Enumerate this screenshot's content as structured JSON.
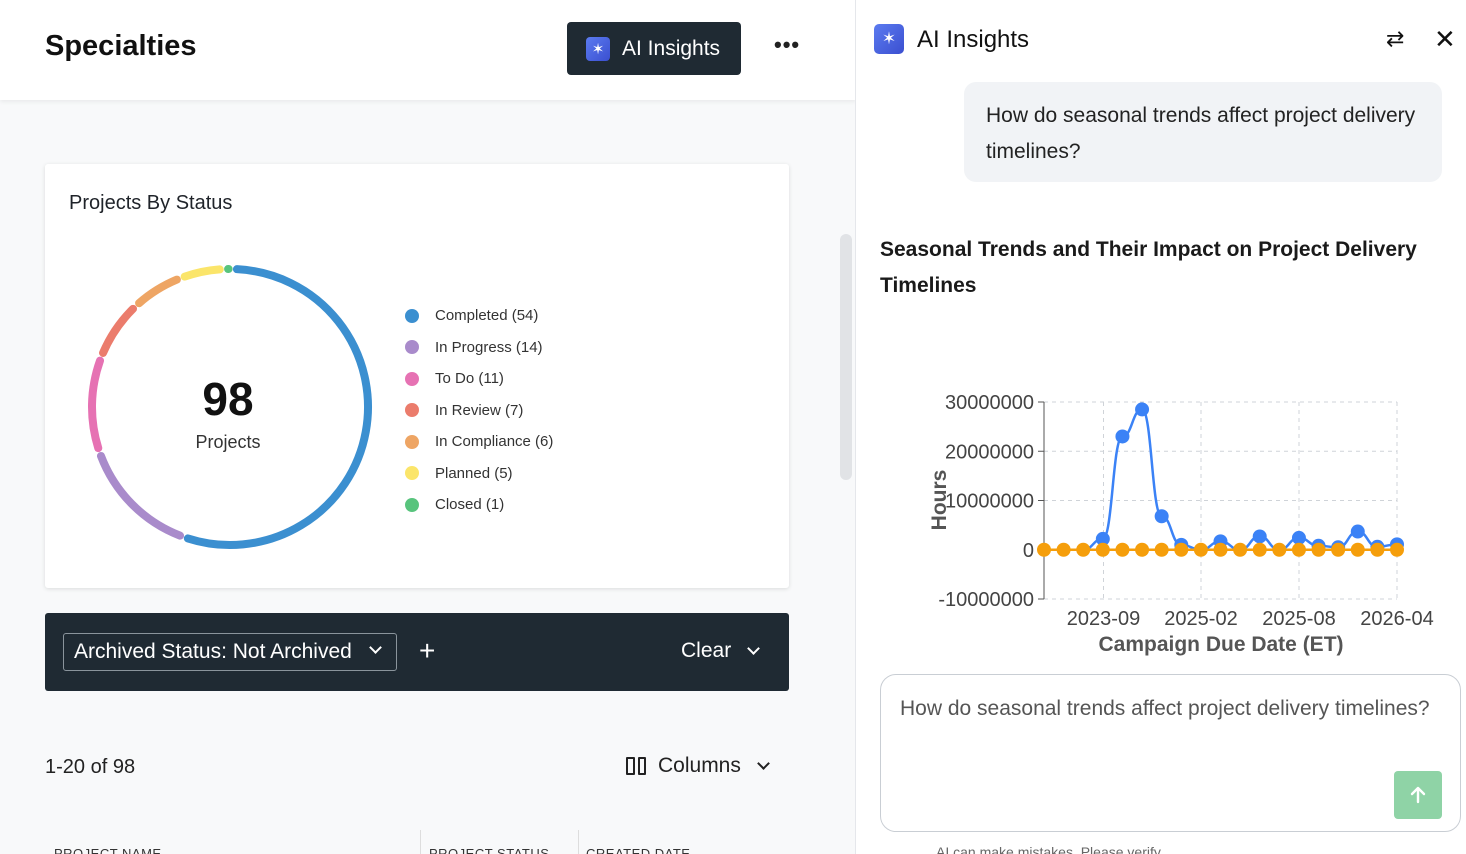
{
  "header": {
    "title": "Specialties",
    "ai_button_label": "AI Insights",
    "more_label": "•••"
  },
  "status_card": {
    "title": "Projects By Status",
    "total": "98",
    "total_label": "Projects",
    "legend": [
      {
        "label": "Completed (54)",
        "count": 54,
        "color": "#3b8fd0"
      },
      {
        "label": "In Progress (14)",
        "count": 14,
        "color": "#a98bcb"
      },
      {
        "label": "To Do (11)",
        "count": 11,
        "color": "#e672b3"
      },
      {
        "label": "In Review (7)",
        "count": 7,
        "color": "#eb7c6c"
      },
      {
        "label": "In Compliance (6)",
        "count": 6,
        "color": "#eea564"
      },
      {
        "label": "Planned (5)",
        "count": 5,
        "color": "#fbe56a"
      },
      {
        "label": "Closed (1)",
        "count": 1,
        "color": "#58c47d"
      }
    ]
  },
  "filter_bar": {
    "chip_label": "Archived Status: Not Archived",
    "add_label": "+",
    "clear_label": "Clear"
  },
  "table": {
    "pagination": "1-20 of 98",
    "columns_label": "Columns",
    "headers": [
      "PROJECT NAME",
      "PROJECT STATUS",
      "CREATED DATE"
    ]
  },
  "ai_panel": {
    "title": "AI Insights",
    "user_question": "How do seasonal trends affect project delivery timelines?",
    "answer_title": "Seasonal Trends and Their Impact on Project Delivery Timelines",
    "input_value": "How do seasonal trends affect project delivery timelines?",
    "footer_note": "AI can make mistakes. Please verify"
  },
  "chart_data": {
    "type": "line",
    "title": "",
    "xlabel": "Campaign Due Date (ET)",
    "ylabel": "Hours",
    "ylim": [
      -10000000,
      30000000
    ],
    "y_ticks": [
      "30000000",
      "20000000",
      "10000000",
      "0",
      "-10000000"
    ],
    "x_ticks": [
      "2023-09",
      "2025-02",
      "2025-08",
      "2026-04"
    ],
    "grid": true,
    "series": [
      {
        "color": "#3b82f6",
        "values": [
          0,
          0,
          0,
          2200000,
          23000000,
          28500000,
          6800000,
          1000000,
          0,
          1700000,
          0,
          2700000,
          0,
          2400000,
          800000,
          500000,
          3700000,
          600000,
          1100000
        ]
      },
      {
        "color": "#f59e0b",
        "values": [
          0,
          0,
          0,
          0,
          0,
          0,
          0,
          0,
          0,
          0,
          0,
          0,
          0,
          0,
          0,
          0,
          0,
          0,
          0
        ]
      }
    ]
  }
}
